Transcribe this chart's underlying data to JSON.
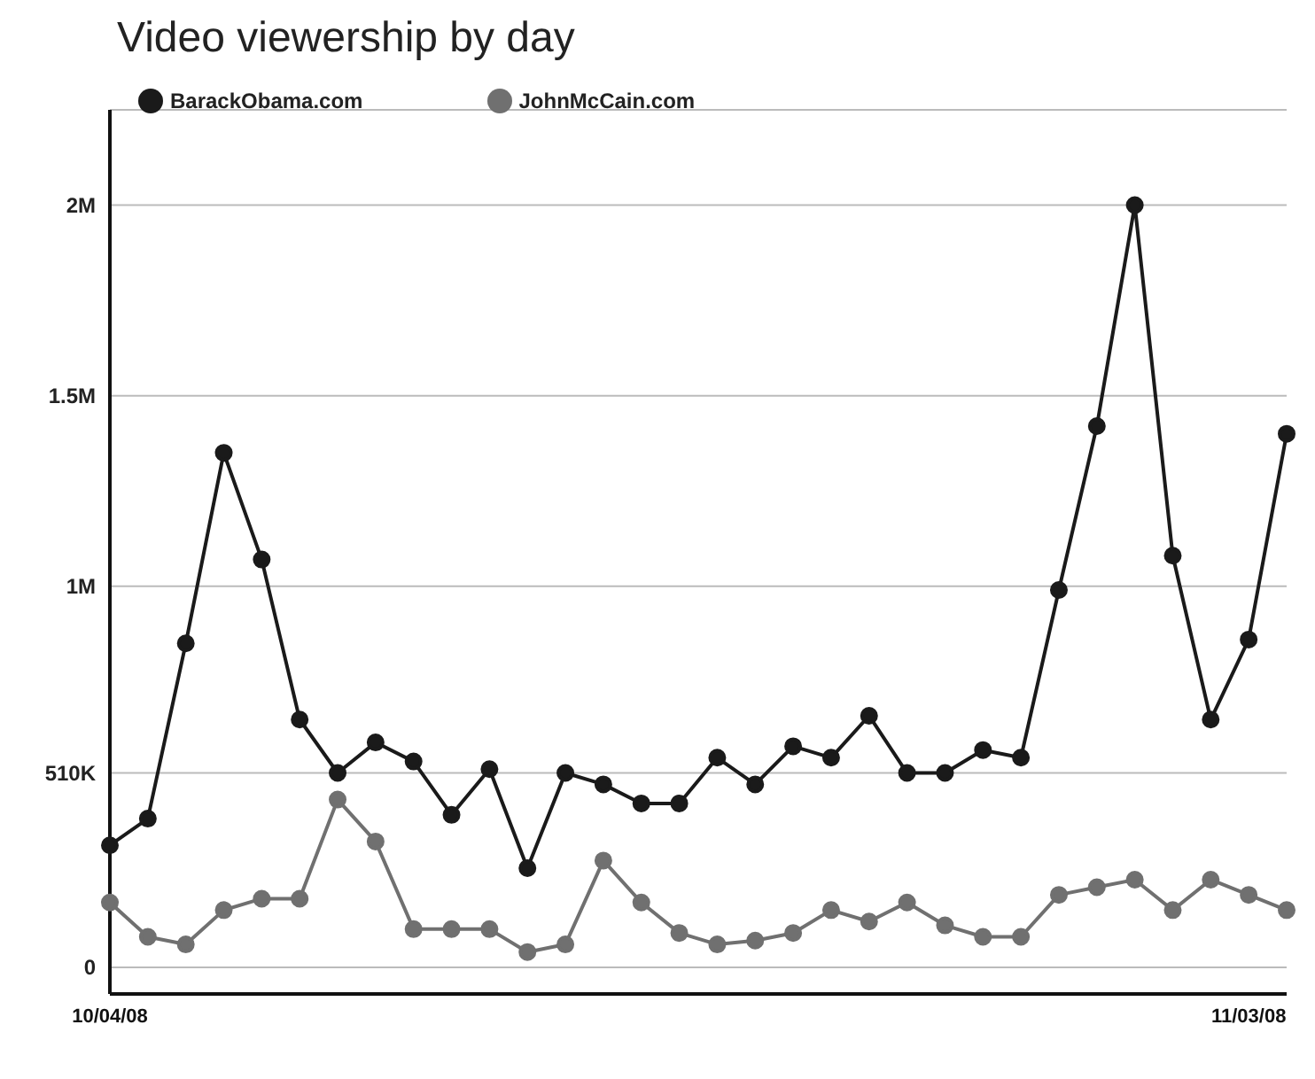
{
  "chart_data": {
    "type": "line",
    "title": "Video viewership by day",
    "categories": [
      "10/04/08",
      null,
      null,
      null,
      null,
      null,
      null,
      null,
      null,
      null,
      null,
      null,
      null,
      null,
      null,
      null,
      null,
      null,
      null,
      null,
      null,
      null,
      null,
      null,
      null,
      null,
      null,
      null,
      null,
      null,
      "11/03/08",
      null
    ],
    "series": [
      {
        "name": "BarackObama.com",
        "color": "#1a1a1a",
        "values": [
          320000,
          390000,
          850000,
          1350000,
          1070000,
          650000,
          510000,
          590000,
          540000,
          400000,
          520000,
          260000,
          510000,
          480000,
          430000,
          430000,
          550000,
          480000,
          580000,
          550000,
          660000,
          510000,
          510000,
          570000,
          550000,
          990000,
          1420000,
          2000000,
          1080000,
          650000,
          860000,
          1400000
        ]
      },
      {
        "name": "JohnMcCain.com",
        "color": "#707070",
        "values": [
          170000,
          80000,
          60000,
          150000,
          180000,
          180000,
          440000,
          330000,
          100000,
          100000,
          100000,
          40000,
          60000,
          280000,
          170000,
          90000,
          60000,
          70000,
          90000,
          150000,
          120000,
          170000,
          110000,
          80000,
          80000,
          190000,
          210000,
          230000,
          150000,
          230000,
          190000,
          150000
        ]
      }
    ],
    "ylim": [
      -70000,
      2250000
    ],
    "yticks": [
      0,
      {
        "value": 510000,
        "label": "510K"
      },
      {
        "value": 1000000,
        "label": "1M"
      },
      {
        "value": 1500000,
        "label": "1.5M"
      },
      {
        "value": 2000000,
        "label": "2M"
      }
    ],
    "grid": "y",
    "legend": "top left",
    "marker": "circle"
  }
}
